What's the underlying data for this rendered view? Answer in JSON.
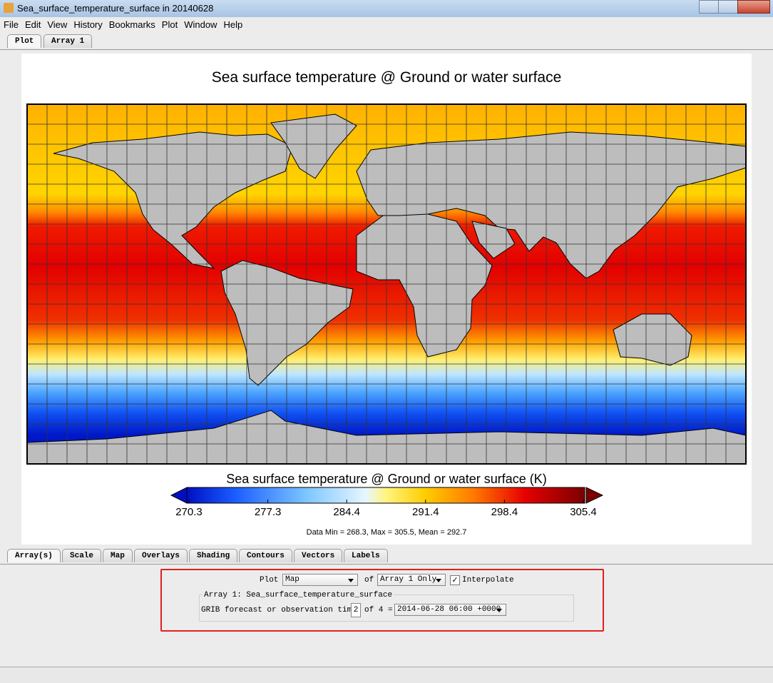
{
  "window": {
    "title": "Sea_surface_temperature_surface in 20140628"
  },
  "menu": [
    "File",
    "Edit",
    "View",
    "History",
    "Bookmarks",
    "Plot",
    "Window",
    "Help"
  ],
  "tabs": [
    "Plot",
    "Array 1"
  ],
  "plot": {
    "title": "Sea surface temperature @ Ground or water surface",
    "colorbar": {
      "title": "Sea surface temperature @ Ground or water surface (K)",
      "ticks": [
        270.3,
        277.3,
        284.4,
        291.4,
        298.4,
        305.4
      ]
    },
    "stats": "Data Min = 268.3, Max = 305.5, Mean = 292.7"
  },
  "bottom_tabs": [
    "Array(s)",
    "Scale",
    "Map",
    "Overlays",
    "Shading",
    "Contours",
    "Vectors",
    "Labels"
  ],
  "controls": {
    "plot_label": "Plot",
    "plot_select": "Map",
    "of": "of",
    "array_select": "Array 1 Only",
    "interpolate": "Interpolate",
    "group_title": "Array 1: Sea_surface_temperature_surface",
    "time_label": "GRIB forecast or observation time:",
    "time_index": "2",
    "of_count": "of 4 =",
    "time_select": "2014-06-28 06:00 +0000"
  }
}
